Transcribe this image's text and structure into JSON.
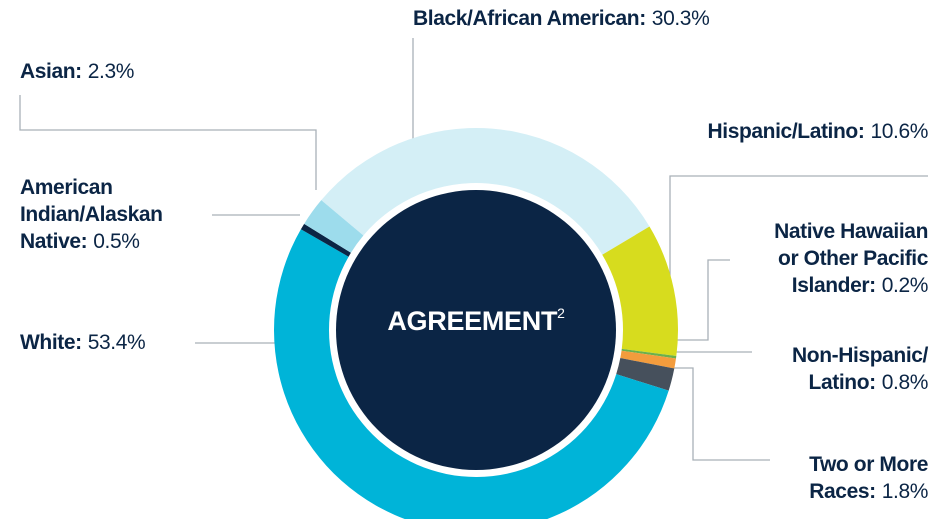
{
  "chart_data": {
    "type": "donut",
    "center_label": "AGREEMENT",
    "center_footnote": "2",
    "categories": [
      "Black/African American:",
      "Hispanic/Latino:",
      "Native Hawaiian\nor Other Pacific\nIslander:",
      "Non-Hispanic/\nLatino:",
      "Two or More\nRaces:",
      "White:",
      "American\nIndian/Alaskan\nNative:",
      "Asian:"
    ],
    "values": [
      30.3,
      10.6,
      0.2,
      0.8,
      1.8,
      53.4,
      0.5,
      2.3
    ],
    "value_labels": [
      "30.3%",
      "10.6%",
      "0.2%",
      "0.8%",
      "1.8%",
      "53.4%",
      "0.5%",
      "2.3%"
    ],
    "colors": [
      "#d4eff6",
      "#d7dc1e",
      "#6ab04c",
      "#f39c3d",
      "#46505c",
      "#00b4d8",
      "#0b2545",
      "#9ddcec"
    ]
  }
}
